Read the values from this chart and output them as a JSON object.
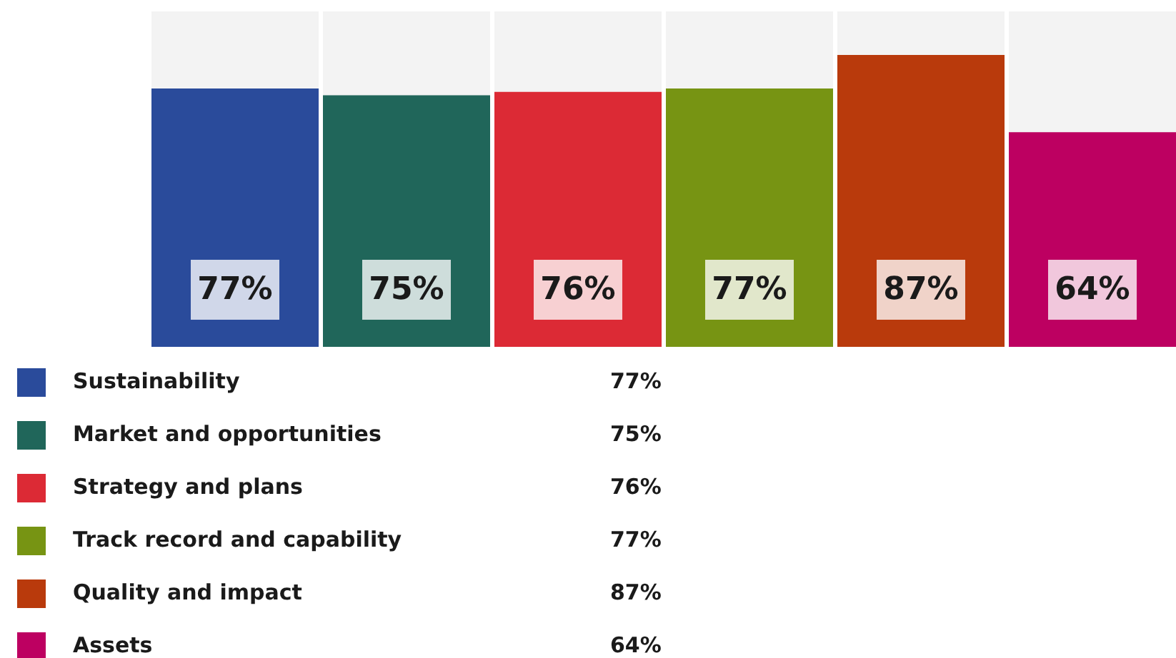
{
  "chart_data": {
    "type": "bar",
    "categories": [
      null
    ],
    "series": [
      {
        "name": "Sustainability",
        "color": "#2a4b9b",
        "values": [
          77
        ],
        "value_labels": [
          "77%"
        ]
      },
      {
        "name": "Market and opportunities",
        "color": "#20665a",
        "values": [
          75
        ],
        "value_labels": [
          "75%"
        ]
      },
      {
        "name": "Strategy and plans",
        "color": "#dc2a35",
        "values": [
          76
        ],
        "value_labels": [
          "76%"
        ]
      },
      {
        "name": "Track record and capability",
        "color": "#779413",
        "values": [
          77
        ],
        "value_labels": [
          "77%"
        ]
      },
      {
        "name": "Quality and impact",
        "color": "#b93a0c",
        "values": [
          87
        ],
        "value_labels": [
          "87%"
        ]
      },
      {
        "name": "Assets",
        "color": "#bd0061",
        "values": [
          64
        ],
        "value_labels": [
          "64%"
        ]
      }
    ],
    "ylim": [
      0,
      100
    ],
    "legend": "bottom"
  }
}
